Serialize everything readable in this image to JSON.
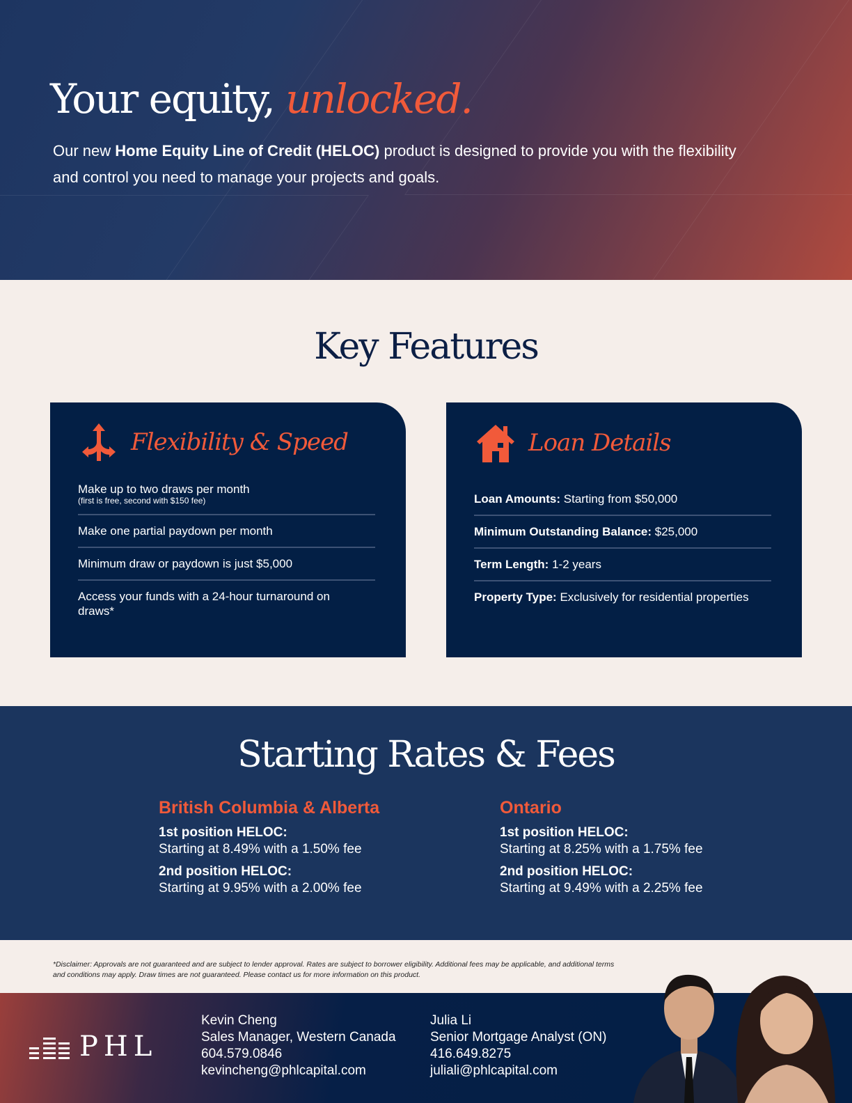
{
  "hero": {
    "title_plain": "Your equity,",
    "title_accent": "unlocked.",
    "intro_pre": "Our new ",
    "intro_bold": "Home Equity Line of Credit (HELOC)",
    "intro_post": " product is designed to provide you with the flexibility and control you need to manage your projects and goals."
  },
  "features": {
    "title": "Key Features",
    "flex": {
      "icon": "split-arrows-icon",
      "title": "Flexibility & Speed",
      "items": [
        {
          "text": "Make up to two draws per month",
          "note": "(first is free, second with $150 fee)"
        },
        {
          "text": "Make one partial paydown per month"
        },
        {
          "text": "Minimum draw or paydown is just $5,000"
        },
        {
          "text": "Access your funds with a 24-hour turnaround on draws*"
        }
      ]
    },
    "loan": {
      "icon": "house-icon",
      "title": "Loan Details",
      "items": [
        {
          "label": "Loan Amounts:",
          "value": " Starting from $50,000"
        },
        {
          "label": "Minimum Outstanding Balance:",
          "value": " $25,000"
        },
        {
          "label": "Term Length:",
          "value": " 1-2 years"
        },
        {
          "label": "Property Type:",
          "value": " Exclusively for residential properties"
        }
      ]
    }
  },
  "rates": {
    "title": "Starting Rates & Fees",
    "regions": [
      {
        "name": "British Columbia & Alberta",
        "first_label": "1st position HELOC:",
        "first": "Starting at 8.49% with a 1.50% fee",
        "second_label": "2nd position HELOC:",
        "second": "Starting at 9.95% with a 2.00% fee"
      },
      {
        "name": "Ontario",
        "first_label": "1st position HELOC:",
        "first": "Starting at 8.25% with a 1.75% fee",
        "second_label": "2nd position HELOC:",
        "second": "Starting at 9.49% with a 2.25% fee"
      }
    ]
  },
  "disclaimer": "*Disclaimer: Approvals are not guaranteed and are subject to lender approval. Rates are subject to borrower eligibility. Additional fees may be applicable, and additional terms and conditions may apply. Draw times are not guaranteed. Please contact us for more information on this product.",
  "footer": {
    "logo": "PHL",
    "contacts": [
      {
        "name": "Kevin Cheng",
        "title": "Sales Manager, Western Canada",
        "phone": "604.579.0846",
        "email": "kevincheng@phlcapital.com"
      },
      {
        "name": "Julia Li",
        "title": "Senior Mortgage Analyst (ON)",
        "phone": "416.649.8275",
        "email": "juliali@phlcapital.com"
      }
    ]
  },
  "colors": {
    "accent": "#f15a3a",
    "navy": "#031f45",
    "rates_bg": "#1b355e",
    "page_bg": "#f5eeea"
  }
}
